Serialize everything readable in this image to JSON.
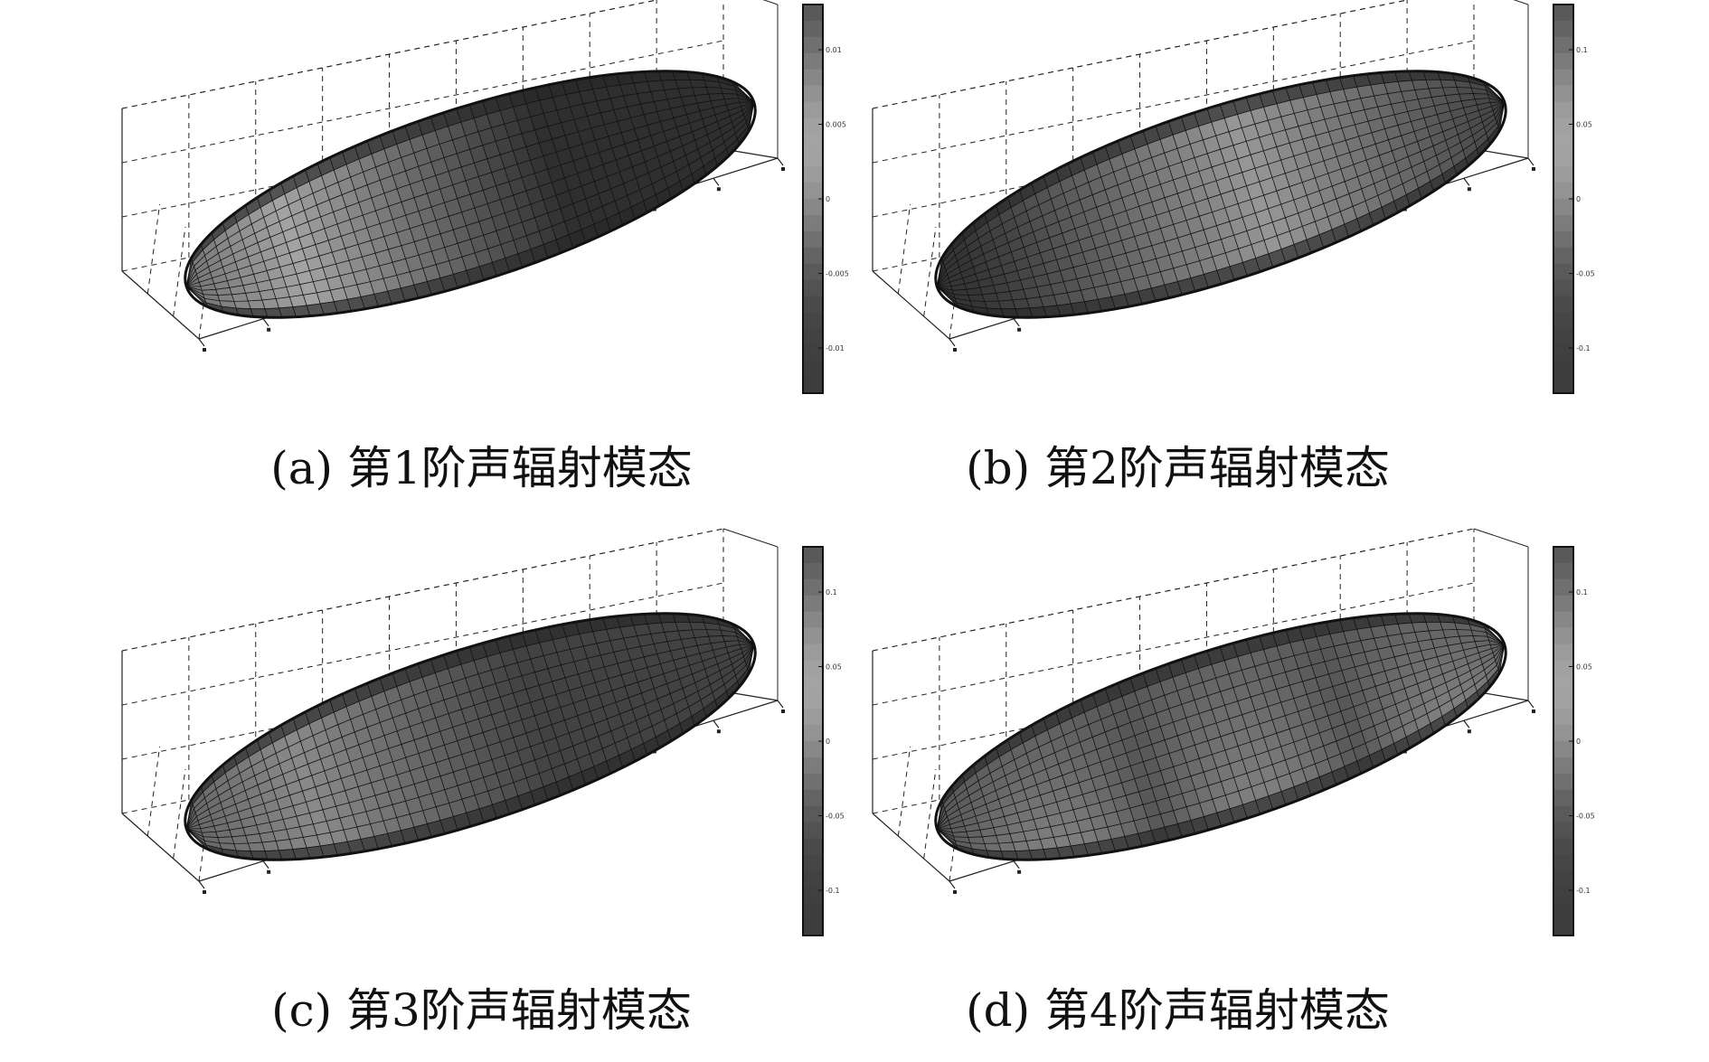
{
  "figure": {
    "panels": [
      {
        "id": "a",
        "caption": "(a) 第1阶声辐射模态",
        "ticks": [
          "0.01",
          "0.005",
          "0",
          "-0.005",
          "-0.01"
        ],
        "band": "light-center"
      },
      {
        "id": "b",
        "caption": "(b) 第2阶声辐射模态",
        "ticks": [
          "0.1",
          "0.05",
          "0",
          "-0.05",
          "-0.1"
        ],
        "band": "light-middle"
      },
      {
        "id": "c",
        "caption": "(c) 第3阶声辐射模态",
        "ticks": [
          "0.1",
          "0.05",
          "0",
          "-0.05",
          "-0.1"
        ],
        "band": "light-ends"
      },
      {
        "id": "d",
        "caption": "(d) 第4阶声辐射模态",
        "ticks": [
          "0.1",
          "0.05",
          "0",
          "-0.05",
          "-0.1"
        ],
        "band": "striped"
      }
    ],
    "colors": {
      "surface_dark": "#2a2a2a",
      "surface_light": "#9a9a9a",
      "grid": "#222222"
    }
  }
}
